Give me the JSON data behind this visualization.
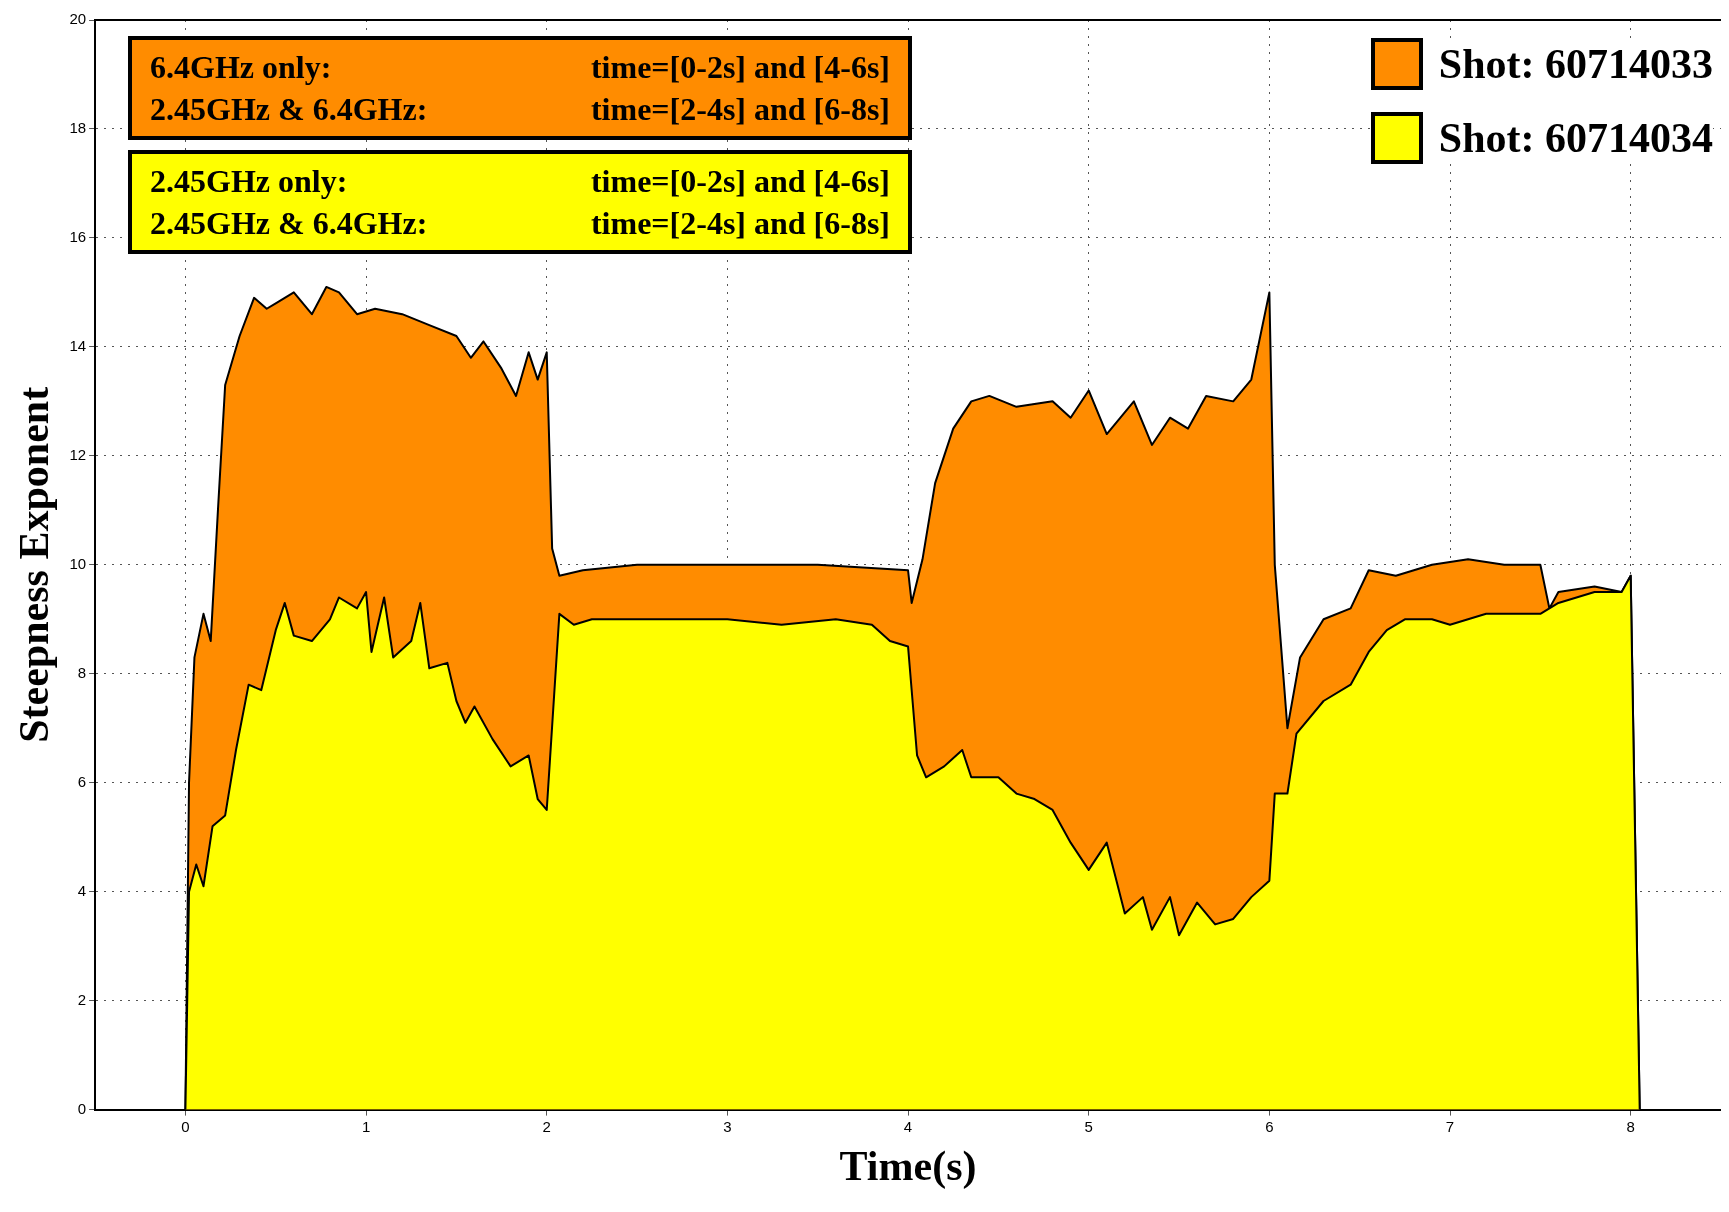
{
  "chart_data": {
    "type": "area",
    "xlabel": "Time(s)",
    "ylabel": "Steepness Exponent",
    "xlim": [
      -0.5,
      8.5
    ],
    "xticks": [
      0,
      1,
      2,
      3,
      4,
      5,
      6,
      7,
      8
    ],
    "ylim": [
      0,
      20
    ],
    "yticks": [
      0,
      2,
      4,
      6,
      8,
      10,
      12,
      14,
      16,
      18,
      20
    ],
    "grid": true,
    "legend": "top right",
    "annotations": [
      "6.4GHz only: time=[0-2s] and [4-6s]",
      "2.45GHz & 6.4GHz: time=[2-4s] and [6-8s]",
      "2.45GHz only: time=[0-2s] and [4-6s]",
      "2.45GHz & 6.4GHz: time=[2-4s] and [6-8s]"
    ],
    "series": [
      {
        "name": "Shot: 60714033",
        "color": "#ff8c00",
        "x": [
          0,
          0.02,
          0.05,
          0.1,
          0.14,
          0.18,
          0.22,
          0.3,
          0.38,
          0.45,
          0.5,
          0.6,
          0.7,
          0.78,
          0.85,
          0.95,
          1.05,
          1.2,
          1.35,
          1.5,
          1.58,
          1.65,
          1.75,
          1.83,
          1.9,
          1.95,
          2.0,
          2.03,
          2.07,
          2.2,
          2.5,
          3,
          3.5,
          4.0,
          4.02,
          4.08,
          4.15,
          4.25,
          4.35,
          4.45,
          4.6,
          4.8,
          4.9,
          5.0,
          5.1,
          5.25,
          5.35,
          5.45,
          5.55,
          5.65,
          5.8,
          5.9,
          6.0,
          6.03,
          6.1,
          6.17,
          6.3,
          6.45,
          6.55,
          6.7,
          6.9,
          7.1,
          7.3,
          7.5,
          7.55,
          7.6,
          7.8,
          7.95,
          8.0,
          8.05
        ],
        "values": [
          0,
          6,
          8.3,
          9.1,
          8.6,
          11,
          13.3,
          14.2,
          14.9,
          14.7,
          14.8,
          15,
          14.6,
          15.1,
          15,
          14.6,
          14.7,
          14.6,
          14.4,
          14.2,
          13.8,
          14.1,
          13.6,
          13.1,
          13.9,
          13.4,
          13.9,
          10.3,
          9.8,
          9.9,
          10,
          10,
          10,
          9.9,
          9.3,
          10.1,
          11.5,
          12.5,
          13,
          13.1,
          12.9,
          13,
          12.7,
          13.2,
          12.4,
          13,
          12.2,
          12.7,
          12.5,
          13.1,
          13,
          13.4,
          15,
          10,
          7,
          8.3,
          9,
          9.2,
          9.9,
          9.8,
          10,
          10.1,
          10,
          10,
          9.2,
          9.5,
          9.6,
          9.5,
          9.8,
          0
        ]
      },
      {
        "name": "Shot: 60714034",
        "color": "#ffff00",
        "x": [
          0,
          0.02,
          0.06,
          0.1,
          0.15,
          0.22,
          0.28,
          0.35,
          0.42,
          0.5,
          0.55,
          0.6,
          0.7,
          0.8,
          0.85,
          0.95,
          1.0,
          1.03,
          1.1,
          1.15,
          1.25,
          1.3,
          1.35,
          1.45,
          1.5,
          1.55,
          1.6,
          1.7,
          1.8,
          1.9,
          1.95,
          2.0,
          2.07,
          2.15,
          2.25,
          2.5,
          3.0,
          3.3,
          3.6,
          3.8,
          3.9,
          4.0,
          4.05,
          4.1,
          4.2,
          4.3,
          4.35,
          4.5,
          4.6,
          4.7,
          4.8,
          4.9,
          5.0,
          5.1,
          5.2,
          5.3,
          5.35,
          5.45,
          5.5,
          5.6,
          5.7,
          5.8,
          5.9,
          6.0,
          6.03,
          6.1,
          6.15,
          6.3,
          6.45,
          6.55,
          6.65,
          6.75,
          6.9,
          7.0,
          7.1,
          7.2,
          7.5,
          7.6,
          7.8,
          7.95,
          8.0,
          8.05
        ],
        "values": [
          0,
          4,
          4.5,
          4.1,
          5.2,
          5.4,
          6.6,
          7.8,
          7.7,
          8.8,
          9.3,
          8.7,
          8.6,
          9,
          9.4,
          9.2,
          9.5,
          8.4,
          9.4,
          8.3,
          8.6,
          9.3,
          8.1,
          8.2,
          7.5,
          7.1,
          7.4,
          6.8,
          6.3,
          6.5,
          5.7,
          5.5,
          9.1,
          8.9,
          9,
          9,
          9,
          8.9,
          9,
          8.9,
          8.6,
          8.5,
          6.5,
          6.1,
          6.3,
          6.6,
          6.1,
          6.1,
          5.8,
          5.7,
          5.5,
          4.9,
          4.4,
          4.9,
          3.6,
          3.9,
          3.3,
          3.9,
          3.2,
          3.8,
          3.4,
          3.5,
          3.9,
          4.2,
          5.8,
          5.8,
          6.9,
          7.5,
          7.8,
          8.4,
          8.8,
          9,
          9,
          8.9,
          9,
          9.1,
          9.1,
          9.3,
          9.5,
          9.5,
          9.8,
          0
        ]
      }
    ]
  }
}
